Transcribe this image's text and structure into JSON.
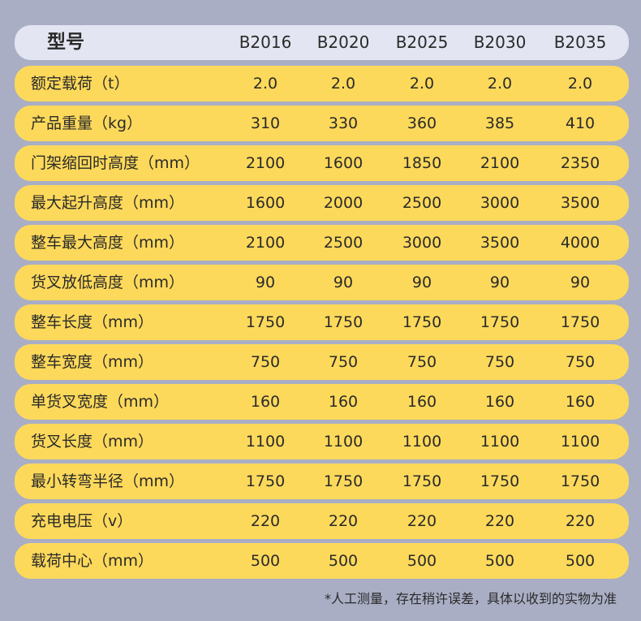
{
  "header": {
    "label": "型号",
    "models": [
      "B2016",
      "B2020",
      "B2025",
      "B2030",
      "B2035"
    ]
  },
  "rows": [
    {
      "label": "额定载荷（t）",
      "values": [
        "2.0",
        "2.0",
        "2.0",
        "2.0",
        "2.0"
      ]
    },
    {
      "label": "产品重量（kg）",
      "values": [
        "310",
        "330",
        "360",
        "385",
        "410"
      ]
    },
    {
      "label": "门架缩回时高度（mm）",
      "values": [
        "2100",
        "1600",
        "1850",
        "2100",
        "2350"
      ]
    },
    {
      "label": "最大起升高度（mm）",
      "values": [
        "1600",
        "2000",
        "2500",
        "3000",
        "3500"
      ]
    },
    {
      "label": "整车最大高度（mm）",
      "values": [
        "2100",
        "2500",
        "3000",
        "3500",
        "4000"
      ]
    },
    {
      "label": "货叉放低高度（mm）",
      "values": [
        "90",
        "90",
        "90",
        "90",
        "90"
      ]
    },
    {
      "label": "整车长度（mm）",
      "values": [
        "1750",
        "1750",
        "1750",
        "1750",
        "1750"
      ]
    },
    {
      "label": "整车宽度（mm）",
      "values": [
        "750",
        "750",
        "750",
        "750",
        "750"
      ]
    },
    {
      "label": "单货叉宽度（mm）",
      "values": [
        "160",
        "160",
        "160",
        "160",
        "160"
      ]
    },
    {
      "label": "货叉长度（mm）",
      "values": [
        "1100",
        "1100",
        "1100",
        "1100",
        "1100"
      ]
    },
    {
      "label": "最小转弯半径（mm）",
      "values": [
        "1750",
        "1750",
        "1750",
        "1750",
        "1750"
      ]
    },
    {
      "label": "充电电压（v）",
      "values": [
        "220",
        "220",
        "220",
        "220",
        "220"
      ]
    },
    {
      "label": "载荷中心（mm）",
      "values": [
        "500",
        "500",
        "500",
        "500",
        "500"
      ]
    }
  ],
  "note": "*人工测量，存在稍许误差，具体以收到的实物为准",
  "colors": {
    "background": "#a9aec4",
    "header_row": "#e3e6f2",
    "row": "#fdd95b"
  }
}
